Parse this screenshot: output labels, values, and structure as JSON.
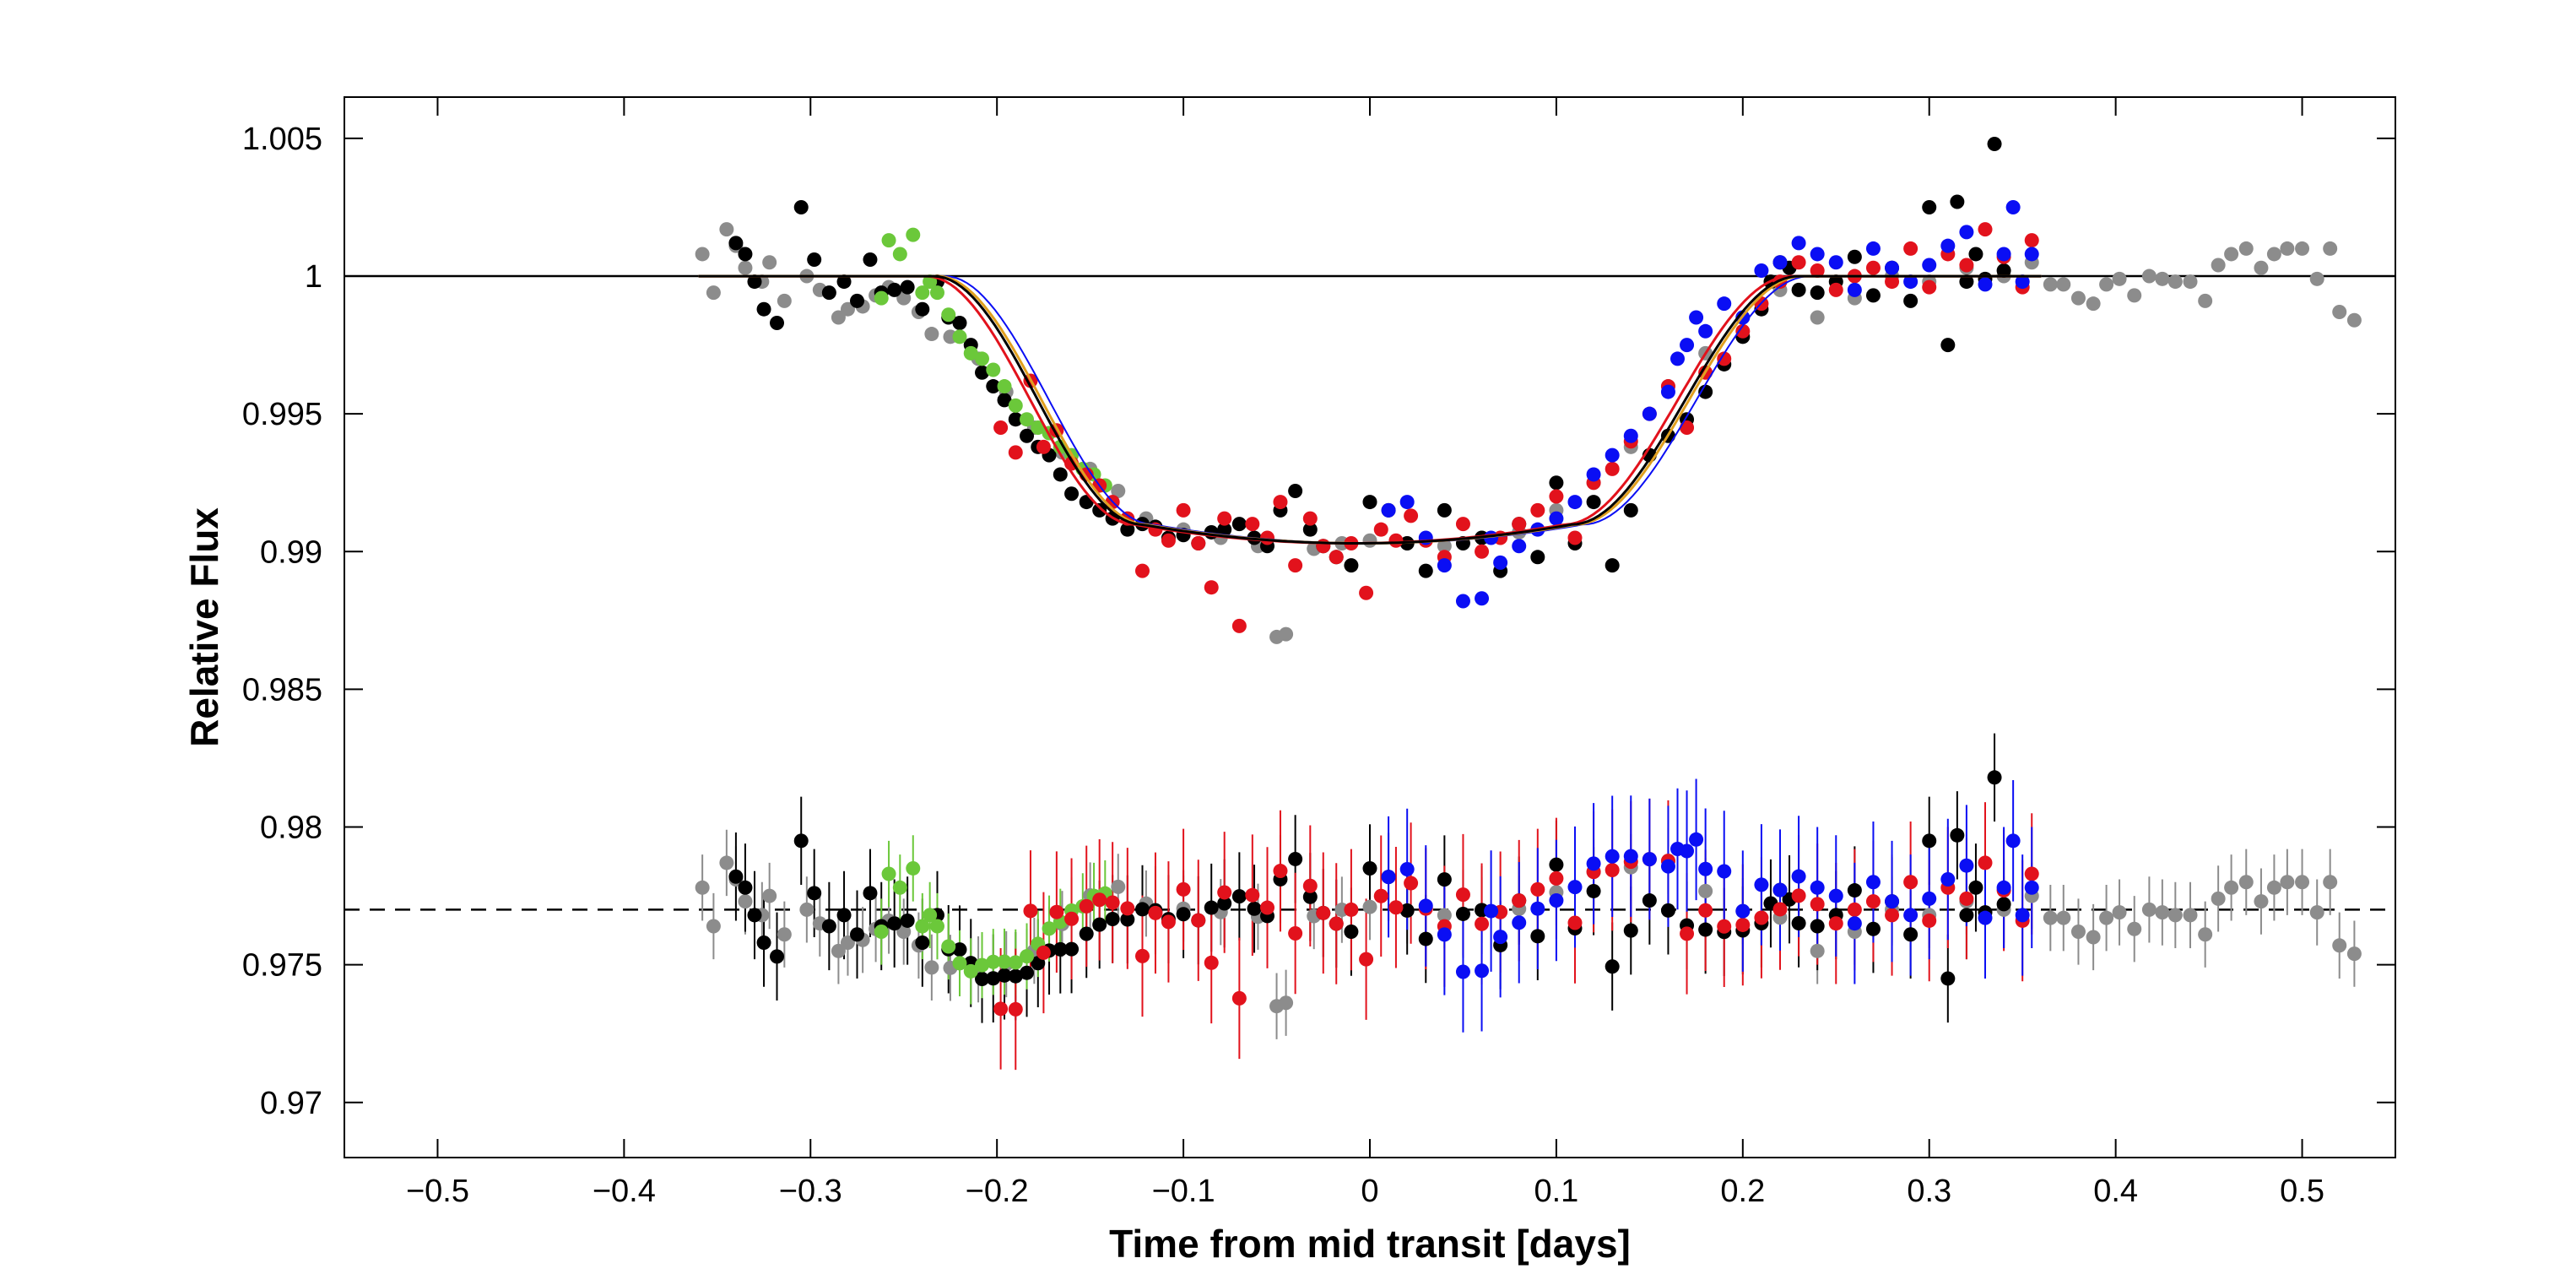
{
  "chart_data": {
    "type": "scatter",
    "title": "",
    "xlabel": "Time from mid transit [days]",
    "ylabel": "Relative Flux",
    "xlim": [
      -0.55,
      0.55
    ],
    "ylim": [
      0.968,
      1.0065
    ],
    "x_ticks": [
      -0.5,
      -0.4,
      -0.3,
      -0.2,
      -0.1,
      0,
      0.1,
      0.2,
      0.3,
      0.4,
      0.5
    ],
    "x_tick_labels": [
      "−0.5",
      "−0.4",
      "−0.3",
      "−0.2",
      "−0.1",
      "0",
      "0.1",
      "0.2",
      "0.3",
      "0.4",
      "0.5"
    ],
    "y_ticks": [
      0.97,
      0.975,
      0.98,
      0.985,
      0.99,
      0.995,
      1.0,
      1.005
    ],
    "y_tick_labels": [
      "0.97",
      "0.975",
      "0.98",
      "0.985",
      "0.99",
      "0.995",
      "1",
      "1.005"
    ],
    "baseline": 1.0,
    "residual_offset": 0.977,
    "transit_model": {
      "depth": 0.0097,
      "contact_times": [
        -0.232,
        -0.12,
        0.11,
        0.232
      ]
    },
    "series": [
      {
        "name": "gray",
        "color": "#8c8c8c",
        "x": [
          -0.358,
          -0.352,
          -0.345,
          -0.34,
          -0.335,
          -0.326,
          -0.322,
          -0.314,
          -0.302,
          -0.295,
          -0.285,
          -0.28,
          -0.272,
          -0.265,
          -0.258,
          -0.25,
          -0.242,
          -0.235,
          -0.225,
          -0.21,
          -0.195,
          -0.18,
          -0.165,
          -0.15,
          -0.135,
          -0.12,
          -0.1,
          -0.08,
          -0.06,
          -0.05,
          -0.045,
          -0.03,
          -0.015,
          0.0,
          0.02,
          0.04,
          0.06,
          0.08,
          0.1,
          0.12,
          0.14,
          0.16,
          0.18,
          0.2,
          0.22,
          0.24,
          0.26,
          0.28,
          0.3,
          0.32,
          0.34,
          0.355,
          0.365,
          0.372,
          0.38,
          0.388,
          0.395,
          0.402,
          0.41,
          0.418,
          0.425,
          0.432,
          0.44,
          0.448,
          0.455,
          0.462,
          0.47,
          0.478,
          0.485,
          0.492,
          0.5,
          0.508,
          0.515,
          0.52,
          0.528
        ],
        "y": [
          1.0008,
          0.9994,
          1.0017,
          1.0011,
          1.0003,
          0.9998,
          1.0005,
          0.9991,
          1.0,
          0.9995,
          0.9985,
          0.9988,
          0.9989,
          0.9993,
          0.9996,
          0.9992,
          0.9987,
          0.9979,
          0.9978,
          0.997,
          0.9958,
          0.9945,
          0.9936,
          0.993,
          0.9922,
          0.9912,
          0.9908,
          0.9905,
          0.9902,
          0.9869,
          0.987,
          0.9901,
          0.9903,
          0.9904,
          0.9903,
          0.9902,
          0.9905,
          0.9907,
          0.9915,
          0.9925,
          0.9938,
          0.996,
          0.9972,
          0.9985,
          0.9995,
          0.9985,
          0.9992,
          1.0,
          0.9998,
          1.0003,
          1.0,
          1.0005,
          0.9997,
          0.9997,
          0.9992,
          0.999,
          0.9997,
          0.9999,
          0.9993,
          1.0,
          0.9999,
          0.9998,
          0.9998,
          0.9991,
          1.0004,
          1.0008,
          1.001,
          1.0003,
          1.0008,
          1.001,
          1.001,
          0.9999,
          1.001,
          0.9987,
          0.9984
        ]
      },
      {
        "name": "black",
        "color": "#000000",
        "x": [
          -0.34,
          -0.335,
          -0.33,
          -0.325,
          -0.318,
          -0.305,
          -0.298,
          -0.29,
          -0.282,
          -0.275,
          -0.268,
          -0.262,
          -0.255,
          -0.248,
          -0.24,
          -0.232,
          -0.226,
          -0.22,
          -0.214,
          -0.208,
          -0.202,
          -0.196,
          -0.19,
          -0.184,
          -0.178,
          -0.172,
          -0.166,
          -0.16,
          -0.152,
          -0.145,
          -0.138,
          -0.13,
          -0.122,
          -0.115,
          -0.108,
          -0.1,
          -0.092,
          -0.085,
          -0.078,
          -0.07,
          -0.062,
          -0.055,
          -0.048,
          -0.04,
          -0.032,
          -0.025,
          -0.018,
          -0.01,
          0.0,
          0.01,
          0.02,
          0.03,
          0.04,
          0.05,
          0.06,
          0.07,
          0.08,
          0.09,
          0.1,
          0.11,
          0.12,
          0.13,
          0.14,
          0.15,
          0.16,
          0.17,
          0.18,
          0.19,
          0.2,
          0.21,
          0.215,
          0.22,
          0.225,
          0.23,
          0.24,
          0.25,
          0.26,
          0.27,
          0.28,
          0.29,
          0.3,
          0.31,
          0.315,
          0.32,
          0.325,
          0.33,
          0.335,
          0.34
        ],
        "y": [
          1.0012,
          1.0008,
          0.9998,
          0.9988,
          0.9983,
          1.0025,
          1.0006,
          0.9994,
          0.9998,
          0.9991,
          1.0006,
          0.9994,
          0.9995,
          0.9996,
          0.9988,
          0.9998,
          0.9985,
          0.9983,
          0.9975,
          0.9965,
          0.996,
          0.9955,
          0.9948,
          0.9942,
          0.9938,
          0.9935,
          0.9928,
          0.9921,
          0.9918,
          0.9915,
          0.9912,
          0.9908,
          0.991,
          0.9909,
          0.9905,
          0.9906,
          0.9903,
          0.9907,
          0.9908,
          0.991,
          0.9905,
          0.9902,
          0.9915,
          0.9922,
          0.9908,
          0.9902,
          0.9898,
          0.9895,
          0.9918,
          0.9915,
          0.9903,
          0.9893,
          0.9915,
          0.9903,
          0.9905,
          0.9893,
          0.991,
          0.9898,
          0.9925,
          0.9903,
          0.9918,
          0.9895,
          0.9915,
          0.9935,
          0.9942,
          0.9948,
          0.9958,
          0.9968,
          0.9978,
          0.9988,
          0.9998,
          1.0005,
          1.0003,
          0.9995,
          0.9994,
          0.9998,
          1.0007,
          0.9993,
          1.0003,
          0.9991,
          1.0025,
          0.9975,
          1.0027,
          0.9998,
          1.0008,
          0.9999,
          1.0048,
          1.0002
        ]
      },
      {
        "name": "green",
        "color": "#6bc83a",
        "x": [
          -0.262,
          -0.258,
          -0.252,
          -0.245,
          -0.24,
          -0.236,
          -0.232,
          -0.226,
          -0.22,
          -0.214,
          -0.208,
          -0.202,
          -0.196,
          -0.19,
          -0.184,
          -0.178,
          -0.172,
          -0.166,
          -0.16,
          -0.154,
          -0.148,
          -0.142
        ],
        "y": [
          0.9992,
          1.0013,
          1.0008,
          1.0015,
          0.9994,
          0.9998,
          0.9994,
          0.9986,
          0.9978,
          0.9972,
          0.997,
          0.9966,
          0.996,
          0.9953,
          0.9948,
          0.9945,
          0.9943,
          0.9938,
          0.9935,
          0.993,
          0.9928,
          0.9924
        ]
      },
      {
        "name": "red",
        "color": "#e2121c",
        "x": [
          -0.198,
          -0.19,
          -0.182,
          -0.175,
          -0.168,
          -0.16,
          -0.152,
          -0.145,
          -0.138,
          -0.13,
          -0.122,
          -0.115,
          -0.108,
          -0.1,
          -0.092,
          -0.085,
          -0.078,
          -0.07,
          -0.063,
          -0.055,
          -0.048,
          -0.04,
          -0.032,
          -0.025,
          -0.018,
          -0.01,
          -0.002,
          0.006,
          0.014,
          0.022,
          0.03,
          0.04,
          0.05,
          0.06,
          0.07,
          0.08,
          0.09,
          0.1,
          0.11,
          0.12,
          0.13,
          0.14,
          0.15,
          0.16,
          0.17,
          0.18,
          0.19,
          0.2,
          0.21,
          0.22,
          0.23,
          0.24,
          0.25,
          0.26,
          0.27,
          0.28,
          0.29,
          0.3,
          0.31,
          0.32,
          0.33,
          0.34,
          0.35,
          0.355
        ],
        "y": [
          0.9945,
          0.9936,
          0.9962,
          0.9938,
          0.9944,
          0.9932,
          0.9928,
          0.9924,
          0.9918,
          0.9912,
          0.9893,
          0.9908,
          0.9904,
          0.9915,
          0.9903,
          0.9887,
          0.9912,
          0.9873,
          0.991,
          0.9905,
          0.9918,
          0.9895,
          0.9912,
          0.9902,
          0.9898,
          0.9903,
          0.9885,
          0.9908,
          0.9904,
          0.9913,
          0.9904,
          0.9898,
          0.991,
          0.99,
          0.9905,
          0.991,
          0.9915,
          0.992,
          0.9905,
          0.9925,
          0.993,
          0.994,
          0.995,
          0.996,
          0.9945,
          0.9965,
          0.997,
          0.998,
          0.999,
          0.9998,
          1.0005,
          1.0002,
          0.9995,
          1.0,
          1.0003,
          0.9998,
          1.001,
          0.9996,
          1.0008,
          1.0004,
          1.0017,
          1.0007,
          0.9996,
          1.0013
        ]
      },
      {
        "name": "blue",
        "color": "#0a0ef4",
        "x": [
          0.01,
          0.02,
          0.03,
          0.04,
          0.05,
          0.06,
          0.065,
          0.07,
          0.08,
          0.09,
          0.1,
          0.11,
          0.12,
          0.13,
          0.14,
          0.15,
          0.16,
          0.165,
          0.17,
          0.175,
          0.18,
          0.19,
          0.2,
          0.21,
          0.22,
          0.23,
          0.24,
          0.25,
          0.26,
          0.27,
          0.28,
          0.29,
          0.3,
          0.31,
          0.32,
          0.33,
          0.34,
          0.345,
          0.35,
          0.355
        ],
        "y": [
          0.9915,
          0.9918,
          0.9905,
          0.9895,
          0.9882,
          0.9883,
          0.9905,
          0.9896,
          0.9902,
          0.9908,
          0.9912,
          0.9918,
          0.9928,
          0.9935,
          0.9942,
          0.995,
          0.9958,
          0.997,
          0.9975,
          0.9985,
          0.998,
          0.999,
          0.9985,
          1.0002,
          1.0005,
          1.0012,
          1.0008,
          1.0005,
          0.9995,
          1.001,
          1.0003,
          0.9998,
          1.0004,
          1.0011,
          1.0016,
          0.9997,
          1.0008,
          1.0025,
          0.9998,
          1.0008
        ]
      }
    ]
  }
}
